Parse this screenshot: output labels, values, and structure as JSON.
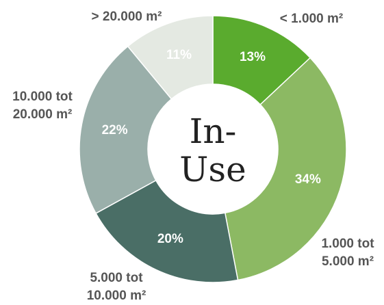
{
  "chart_data": {
    "type": "pie",
    "center_label": "In-Use",
    "categories": [
      "< 1.000 m²",
      "1.000 tot 5.000 m²",
      "5.000 tot 10.000 m²",
      "10.000 tot 20.000 m²",
      "> 20.000 m²"
    ],
    "values": [
      13,
      34,
      20,
      22,
      11
    ],
    "value_labels": [
      "13%",
      "34%",
      "20%",
      "22%",
      "11%"
    ],
    "colors": [
      "#5aab2e",
      "#8cb963",
      "#4a6e66",
      "#9aafaa",
      "#e4e9e2"
    ]
  }
}
